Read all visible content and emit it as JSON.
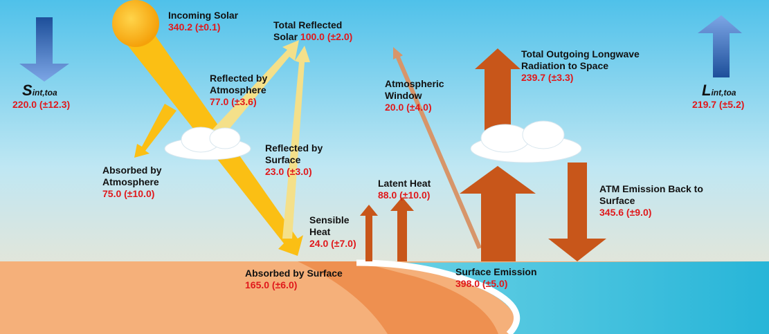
{
  "flows": [
    {
      "label": "Incoming Solar",
      "value": "340.2 (±0.1)"
    },
    {
      "label": "Total Reflected Solar",
      "value": "100.0 (±2.0)"
    },
    {
      "label": "Reflected by Atmosphere",
      "value": "77.0 (±3.6)"
    },
    {
      "label": "Absorbed by Atmosphere",
      "value": "75.0 (±10.0)"
    },
    {
      "label": "Reflected by Surface",
      "value": "23.0 (±3.0)"
    },
    {
      "label": "Absorbed by Surface",
      "value": "165.0 (±6.0)"
    },
    {
      "label": "Sensible Heat",
      "value": "24.0 (±7.0)"
    },
    {
      "label": "Latent Heat",
      "value": "88.0 (±10.0)"
    },
    {
      "label": "Atmospheric Window",
      "value": "20.0 (±4.0)"
    },
    {
      "label": "Total Outgoing Longwave Radiation to Space",
      "value": "239.7 (±3.3)"
    },
    {
      "label": "Surface Emission",
      "value": "398.0 (±5.0)"
    },
    {
      "label": "ATM Emission Back to Surface",
      "value": "345.6 (±9.0)"
    }
  ],
  "toa": [
    {
      "symbol": "S",
      "subscript": "int,toa",
      "value": "220.0 (±12.3)"
    },
    {
      "symbol": "L",
      "subscript": "int,toa",
      "value": "219.7 (±5.2)"
    }
  ]
}
